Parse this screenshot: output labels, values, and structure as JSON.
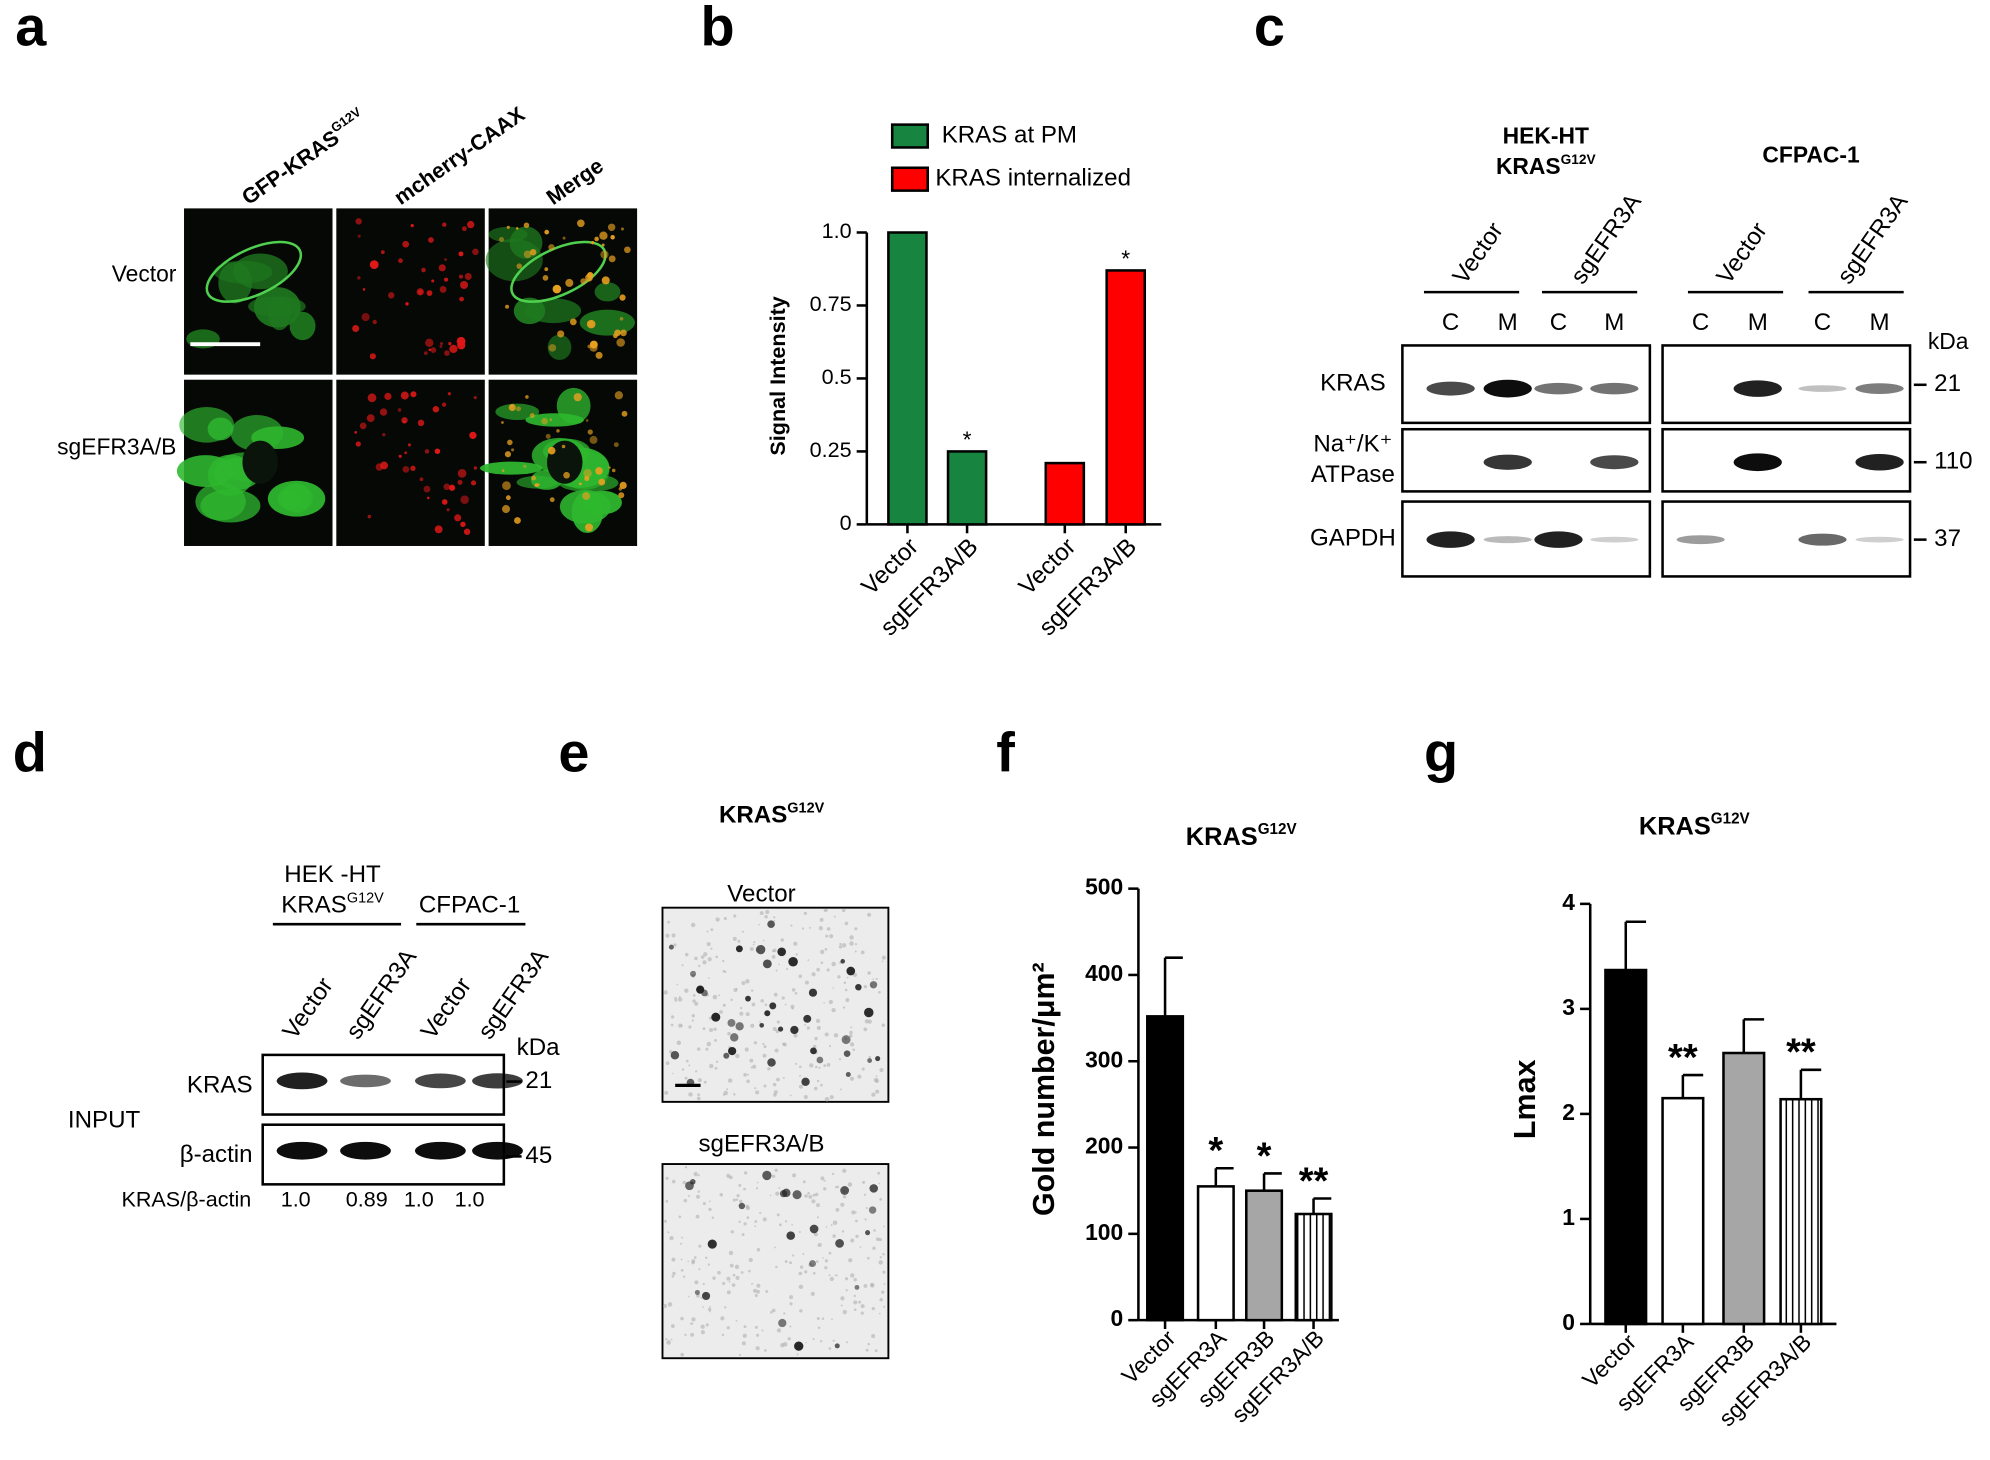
{
  "panel_labels": [
    "a",
    "b",
    "c",
    "d",
    "e",
    "f",
    "g"
  ],
  "panel_a": {
    "columns": [
      {
        "text": "GFP-KRAS",
        "sup": "G12V"
      },
      {
        "text": "mcherry-CAAX"
      },
      {
        "text": "Merge"
      }
    ],
    "rows": [
      "Vector",
      "sgEFR3A/B"
    ]
  },
  "panel_c": {
    "groups": [
      [
        {
          "text": "HEK-HT"
        },
        {
          "text": "KRAS",
          "sup": "G12V"
        }
      ],
      [
        {
          "text": "CFPAC-1"
        }
      ]
    ],
    "lanes": [
      "Vector",
      "sgEFR3A",
      "Vector",
      "sgEFR3A"
    ],
    "fractions": [
      "C",
      "M",
      "C",
      "M",
      "C",
      "M",
      "C",
      "M"
    ],
    "rows": [
      [
        "KRAS"
      ],
      [
        "Na⁺/K⁺",
        "ATPase"
      ],
      [
        "GAPDH"
      ]
    ],
    "kda_unit": "kDa",
    "kda": [
      "21",
      "110",
      "37"
    ]
  },
  "panel_d": {
    "groups": [
      [
        {
          "text": "HEK -HT"
        },
        {
          "text": "KRAS",
          "sup": "G12V"
        }
      ],
      [
        {
          "text": "CFPAC-1"
        }
      ]
    ],
    "lanes": [
      "Vector",
      "sgEFR3A",
      "Vector",
      "sgEFR3A"
    ],
    "rows": [
      "KRAS",
      "β-actin"
    ],
    "side_label": "INPUT",
    "kda_unit": "kDa",
    "kda": [
      "21",
      "45"
    ],
    "ratio_label": "KRAS/β-actin",
    "ratios": [
      "1.0",
      "0.89",
      "1.0",
      "1.0"
    ]
  },
  "panel_e": {
    "title": {
      "text": "KRAS",
      "sup": "G12V"
    },
    "images": [
      "Vector",
      "sgEFR3A/B"
    ]
  },
  "chart_data": [
    {
      "type": "bar",
      "ylabel": "Signal Intensity",
      "categories": [
        "Vector",
        "sgEFR3A/B",
        "Vector",
        "sgEFR3A/B"
      ],
      "series": [
        {
          "name": "KRAS at PM",
          "color": "#17853f",
          "values": [
            1.0,
            0.25,
            null,
            null
          ],
          "significance": [
            null,
            "*",
            null,
            null
          ]
        },
        {
          "name": "KRAS internalized",
          "color": "#ff0000",
          "values": [
            null,
            null,
            0.21,
            0.87
          ],
          "significance": [
            null,
            null,
            null,
            "*"
          ]
        }
      ],
      "ylim": [
        0,
        1
      ],
      "yticks": [
        0,
        0.25,
        0.5,
        0.75,
        {
          "value": 1,
          "label": "1.0"
        }
      ]
    },
    {
      "type": "bar",
      "title": {
        "text": "KRAS",
        "sup": "G12V"
      },
      "ylabel": "Gold number/μm²",
      "categories": [
        "Vector",
        "sgEFR3A",
        "sgEFR3B",
        "sgEFR3A/B"
      ],
      "values": [
        352,
        155,
        150,
        123
      ],
      "errors": [
        68,
        21,
        20,
        18
      ],
      "colors": [
        "#000000",
        "#ffffff",
        "#a6a6a6",
        "#ffffff"
      ],
      "hatch": [
        false,
        false,
        false,
        true
      ],
      "significance": [
        null,
        "*",
        "*",
        "**"
      ],
      "ylim": [
        0,
        500
      ],
      "yticks": [
        0,
        100,
        200,
        300,
        400,
        500
      ]
    },
    {
      "type": "bar",
      "title": {
        "text": "KRAS",
        "sup": "G12V"
      },
      "ylabel": "Lmax",
      "categories": [
        "Vector",
        "sgEFR3A",
        "sgEFR3B",
        "sgEFR3A/B"
      ],
      "values": [
        3.37,
        2.15,
        2.58,
        2.14
      ],
      "errors": [
        0.46,
        0.22,
        0.32,
        0.28
      ],
      "colors": [
        "#000000",
        "#ffffff",
        "#a6a6a6",
        "#ffffff"
      ],
      "hatch": [
        false,
        false,
        false,
        true
      ],
      "significance": [
        null,
        "**",
        null,
        "**"
      ],
      "ylim": [
        0,
        4
      ],
      "yticks": [
        0,
        1,
        2,
        3,
        4
      ]
    }
  ]
}
